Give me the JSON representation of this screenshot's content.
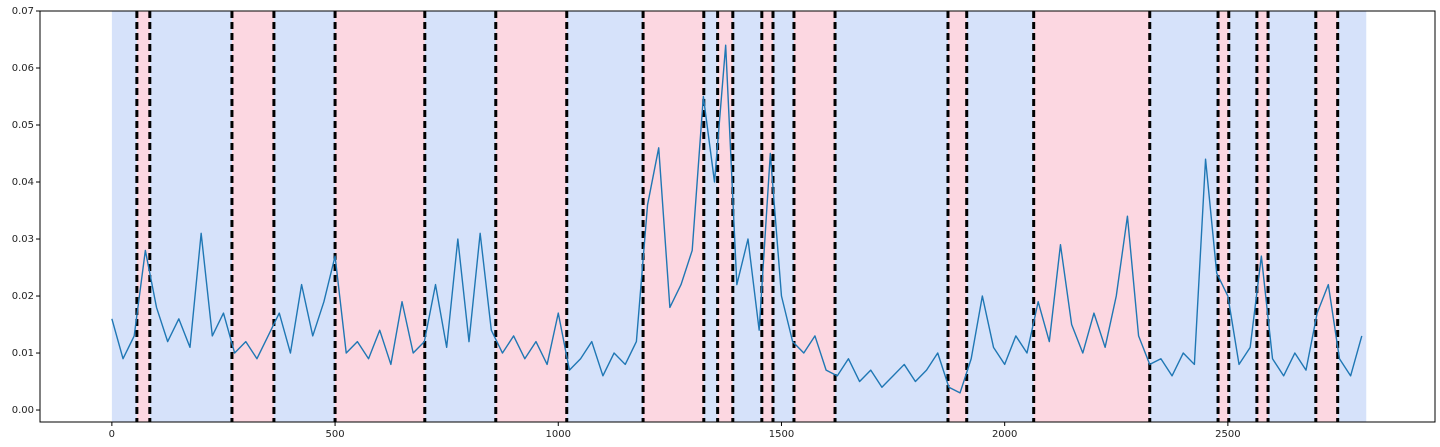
{
  "chart_data": {
    "type": "line",
    "color": "#1f77b4",
    "x": [
      0,
      25,
      50,
      75,
      100,
      125,
      150,
      175,
      200,
      225,
      250,
      275,
      300,
      325,
      350,
      375,
      400,
      425,
      450,
      475,
      500,
      525,
      550,
      575,
      600,
      625,
      650,
      675,
      700,
      725,
      750,
      775,
      800,
      825,
      850,
      875,
      900,
      925,
      950,
      975,
      1000,
      1025,
      1050,
      1075,
      1100,
      1125,
      1150,
      1175,
      1200,
      1225,
      1250,
      1275,
      1300,
      1325,
      1350,
      1375,
      1400,
      1425,
      1450,
      1475,
      1500,
      1525,
      1550,
      1575,
      1600,
      1625,
      1650,
      1675,
      1700,
      1725,
      1750,
      1775,
      1800,
      1825,
      1850,
      1875,
      1900,
      1925,
      1950,
      1975,
      2000,
      2025,
      2050,
      2075,
      2100,
      2125,
      2150,
      2175,
      2200,
      2225,
      2250,
      2275,
      2300,
      2325,
      2350,
      2375,
      2400,
      2425,
      2450,
      2475,
      2500,
      2525,
      2550,
      2575,
      2600,
      2625,
      2650,
      2675,
      2700,
      2725,
      2750,
      2775,
      2800
    ],
    "values": [
      0.016,
      0.009,
      0.013,
      0.028,
      0.018,
      0.012,
      0.016,
      0.011,
      0.031,
      0.013,
      0.017,
      0.01,
      0.012,
      0.009,
      0.013,
      0.017,
      0.01,
      0.022,
      0.013,
      0.019,
      0.027,
      0.01,
      0.012,
      0.009,
      0.014,
      0.008,
      0.019,
      0.01,
      0.012,
      0.022,
      0.011,
      0.03,
      0.012,
      0.031,
      0.014,
      0.01,
      0.013,
      0.009,
      0.012,
      0.008,
      0.017,
      0.007,
      0.009,
      0.012,
      0.006,
      0.01,
      0.008,
      0.012,
      0.036,
      0.046,
      0.018,
      0.022,
      0.028,
      0.055,
      0.04,
      0.064,
      0.022,
      0.03,
      0.014,
      0.045,
      0.02,
      0.012,
      0.01,
      0.013,
      0.007,
      0.006,
      0.009,
      0.005,
      0.007,
      0.004,
      0.006,
      0.008,
      0.005,
      0.007,
      0.01,
      0.004,
      0.003,
      0.009,
      0.02,
      0.011,
      0.008,
      0.013,
      0.01,
      0.019,
      0.012,
      0.029,
      0.015,
      0.01,
      0.017,
      0.011,
      0.02,
      0.034,
      0.013,
      0.008,
      0.009,
      0.006,
      0.01,
      0.008,
      0.044,
      0.024,
      0.02,
      0.008,
      0.011,
      0.027,
      0.009,
      0.006,
      0.01,
      0.007,
      0.017,
      0.022,
      0.009,
      0.006,
      0.013
    ],
    "boundaries": [
      0,
      56,
      85,
      269,
      363,
      500,
      701,
      860,
      1019,
      1190,
      1326,
      1357,
      1391,
      1456,
      1481,
      1528,
      1620,
      1873,
      1915,
      2065,
      2325,
      2478,
      2502,
      2565,
      2590,
      2697,
      2746,
      2810
    ],
    "region_colors": [
      "#d6e2fa",
      "#fcd7e1"
    ],
    "changepoint_color": "#000000",
    "xlim": [
      -161,
      2964
    ],
    "xticks": [
      0,
      500,
      1000,
      1500,
      2000,
      2500
    ],
    "ylim": [
      -0.0021,
      0.07
    ],
    "yticks": [
      {
        "value": 0,
        "label": "0.00"
      },
      {
        "value": 0.01,
        "label": "0.01"
      },
      {
        "value": 0.02,
        "label": "0.02"
      },
      {
        "value": 0.03,
        "label": "0.03"
      },
      {
        "value": 0.04,
        "label": "0.04"
      },
      {
        "value": 0.05,
        "label": "0.05"
      },
      {
        "value": 0.06,
        "label": "0.06"
      },
      {
        "value": 0.07,
        "label": "0.07"
      }
    ]
  }
}
